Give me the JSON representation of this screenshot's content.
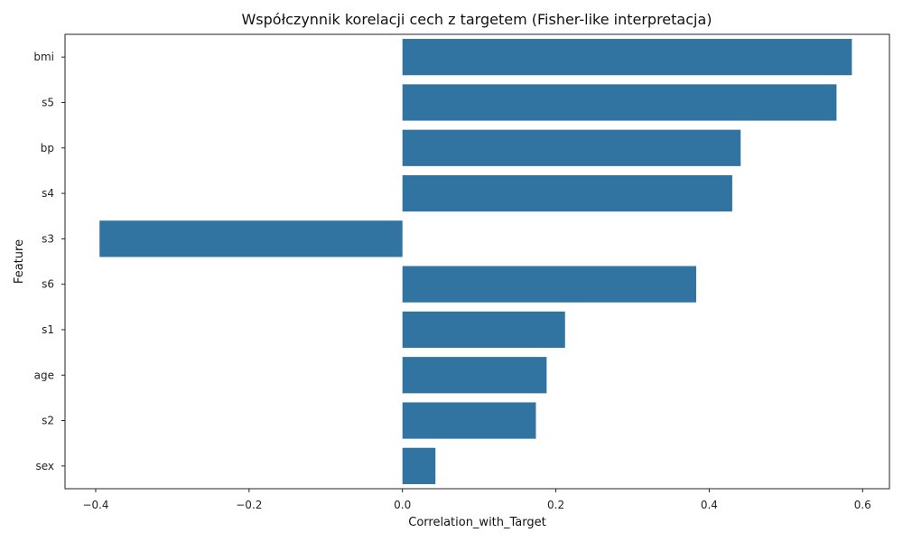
{
  "chart_data": {
    "type": "bar",
    "orientation": "horizontal",
    "title": "Współczynnik korelacji cech z targetem (Fisher-like interpretacja)",
    "xlabel": "Correlation_with_Target",
    "ylabel": "Feature",
    "categories": [
      "bmi",
      "s5",
      "bp",
      "s4",
      "s3",
      "s6",
      "s1",
      "age",
      "s2",
      "sex"
    ],
    "values": [
      0.586,
      0.566,
      0.441,
      0.43,
      -0.395,
      0.383,
      0.212,
      0.188,
      0.174,
      0.043
    ],
    "xlim": [
      -0.44,
      0.635
    ],
    "xticks": [
      -0.4,
      -0.2,
      0.0,
      0.2,
      0.4,
      0.6
    ],
    "xtick_labels": [
      "−0.4",
      "−0.2",
      "0.0",
      "0.2",
      "0.4",
      "0.6"
    ],
    "bar_color": "#3274a1",
    "grid": false,
    "legend": false
  }
}
